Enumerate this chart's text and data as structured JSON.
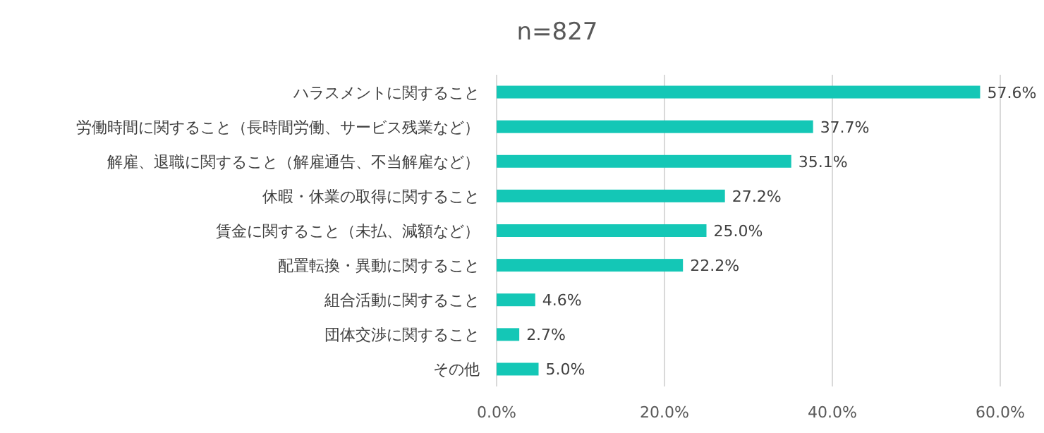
{
  "chart_data": {
    "type": "bar",
    "orientation": "horizontal",
    "title": "n=827",
    "categories": [
      "ハラスメントに関すること",
      "労働時間に関すること（長時間労働、サービス残業など）",
      "解雇、退職に関すること（解雇通告、不当解雇など）",
      "休暇・休業の取得に関すること",
      "賃金に関すること（未払、減額など）",
      "配置転換・異動に関すること",
      "組合活動に関すること",
      "団体交渉に関すること",
      "その他"
    ],
    "values": [
      57.6,
      37.7,
      35.1,
      27.2,
      25.0,
      22.2,
      4.6,
      2.7,
      5.0
    ],
    "value_labels": [
      "57.6%",
      "37.7%",
      "35.1%",
      "27.2%",
      "25.0%",
      "22.2%",
      "4.6%",
      "2.7%",
      "5.0%"
    ],
    "color": "#14c7b6",
    "xlim": [
      0,
      60
    ],
    "xticks": [
      {
        "value": 0,
        "label": "0.0%"
      },
      {
        "value": 20,
        "label": "20.0%"
      },
      {
        "value": 40,
        "label": "40.0%"
      },
      {
        "value": 60,
        "label": "60.0%"
      }
    ],
    "grid": "x"
  }
}
